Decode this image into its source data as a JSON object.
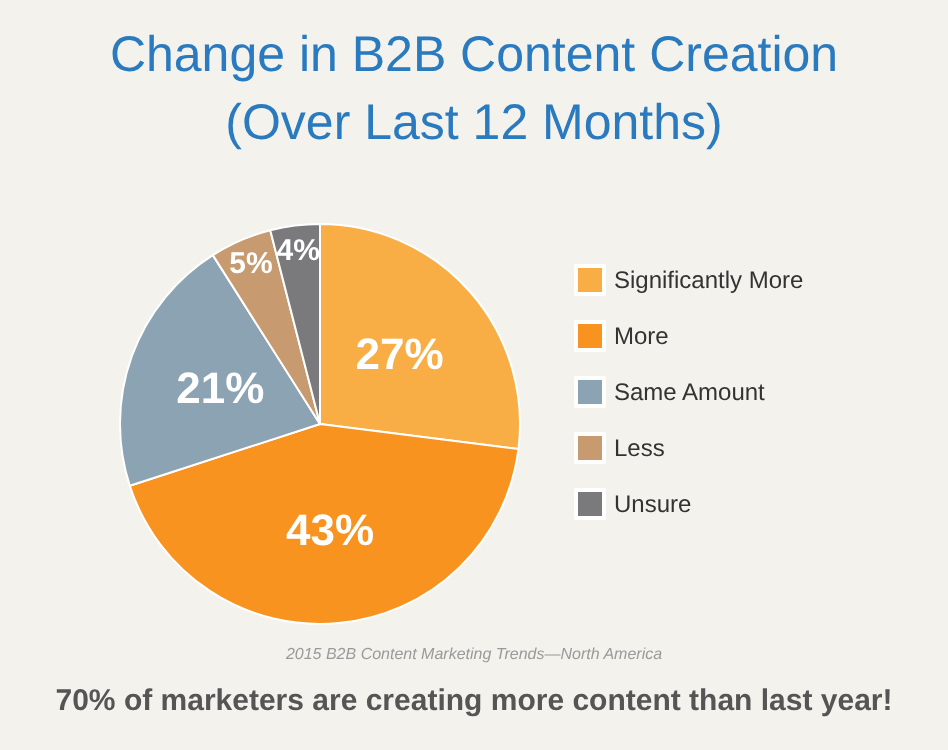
{
  "chart_data": {
    "type": "pie",
    "title": "Change in B2B Content Creation",
    "subtitle": "(Over Last 12 Months)",
    "categories": [
      "Significantly More",
      "More",
      "Same Amount",
      "Less",
      "Unsure"
    ],
    "values": [
      27,
      43,
      21,
      5,
      4
    ],
    "colors": [
      "#f9ae45",
      "#f7931e",
      "#8ca3b3",
      "#c79b6f",
      "#7a7a7c"
    ],
    "value_labels": [
      "27%",
      "43%",
      "21%",
      "5%",
      "4%"
    ],
    "legend": "right",
    "annotations": [
      "2015 B2B Content Marketing Trends—North America",
      "70% of marketers are creating more content than last year!"
    ]
  }
}
